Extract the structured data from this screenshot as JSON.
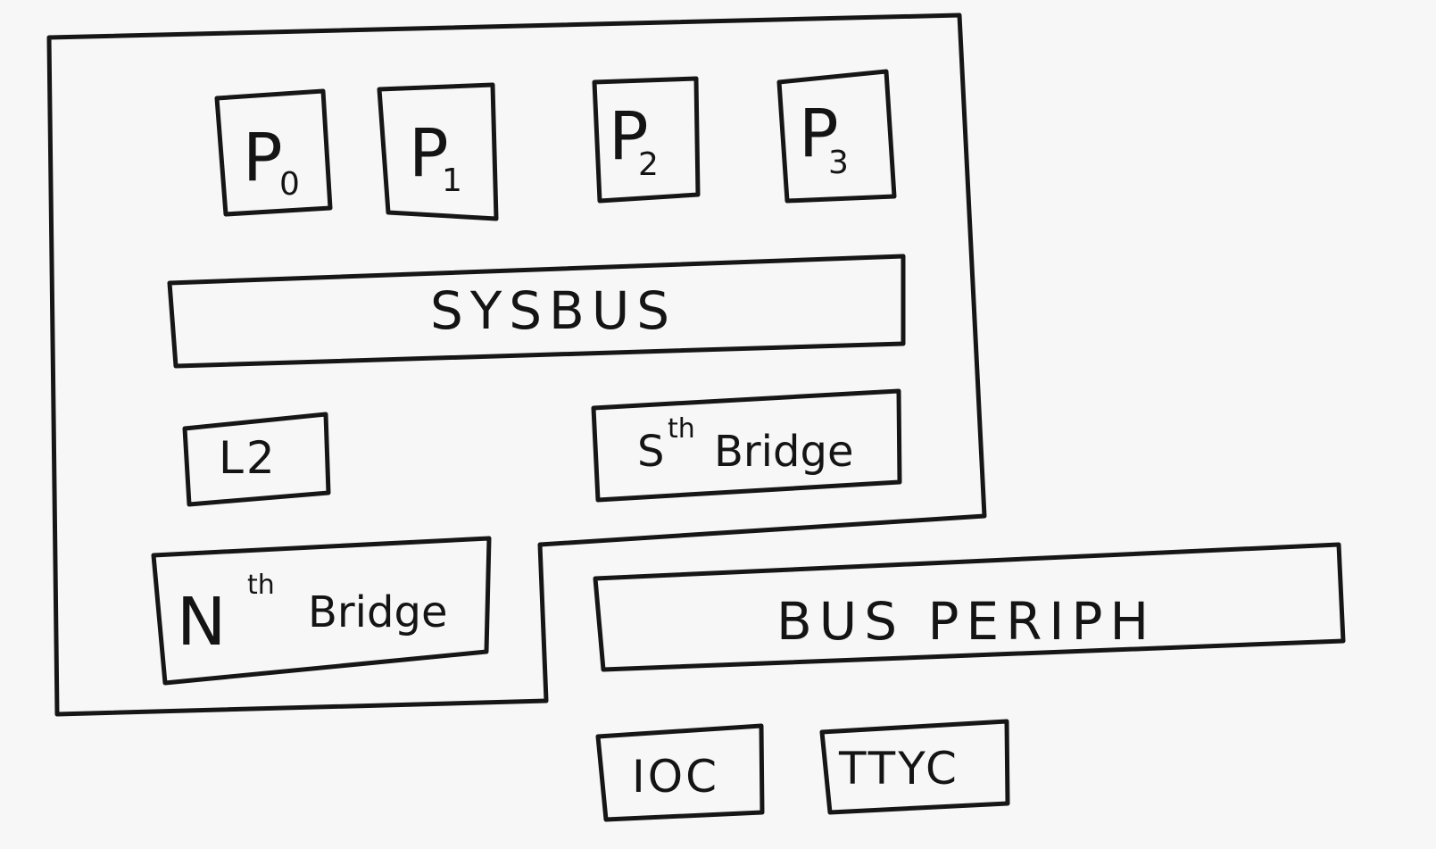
{
  "diagram": {
    "processors": [
      {
        "letter": "P",
        "index": "0"
      },
      {
        "letter": "P",
        "index": "1"
      },
      {
        "letter": "P",
        "index": "2"
      },
      {
        "letter": "P",
        "index": "3"
      }
    ],
    "sysbus": "SYSBUS",
    "l2": "L2",
    "south_bridge": {
      "prefix": "S",
      "sup": "th",
      "suffix": "Bridge"
    },
    "north_bridge": {
      "prefix": "N",
      "sup": "th",
      "suffix": "Bridge"
    },
    "bus_periph": "BUS PERIPH",
    "ioc": "IOC",
    "ttyc": "TTYC"
  }
}
